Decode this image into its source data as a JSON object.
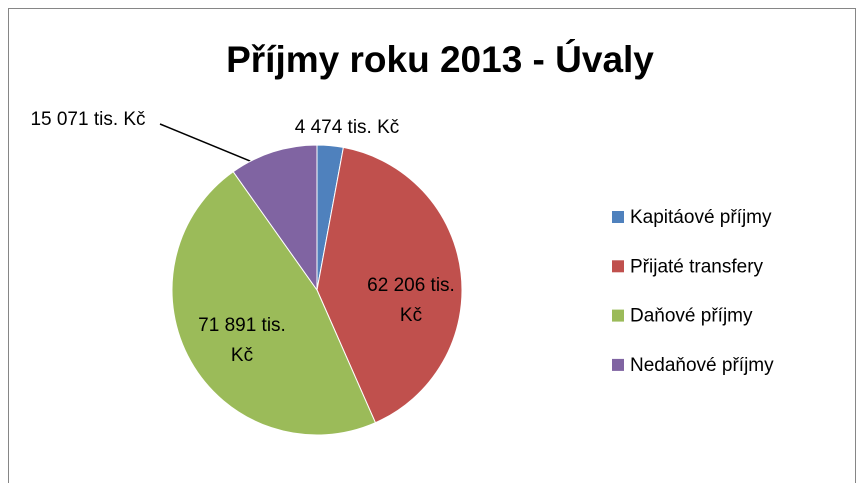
{
  "chart_data": {
    "type": "pie",
    "title": "Příjmy roku 2013 - Úvaly",
    "categories": [
      "Kapitáové příjmy",
      "Přijaté transfery",
      "Daňové příjmy",
      "Nedaňové příjmy"
    ],
    "values": [
      4474,
      62206,
      71891,
      15071
    ],
    "value_labels": [
      "4 474 tis. Kč",
      "62 206 tis. Kč",
      "71 891 tis. Kč",
      "15 071 tis. Kč"
    ],
    "colors": [
      "#4f81bd",
      "#c0504d",
      "#9bbb59",
      "#8064a2"
    ],
    "legend": "right"
  }
}
